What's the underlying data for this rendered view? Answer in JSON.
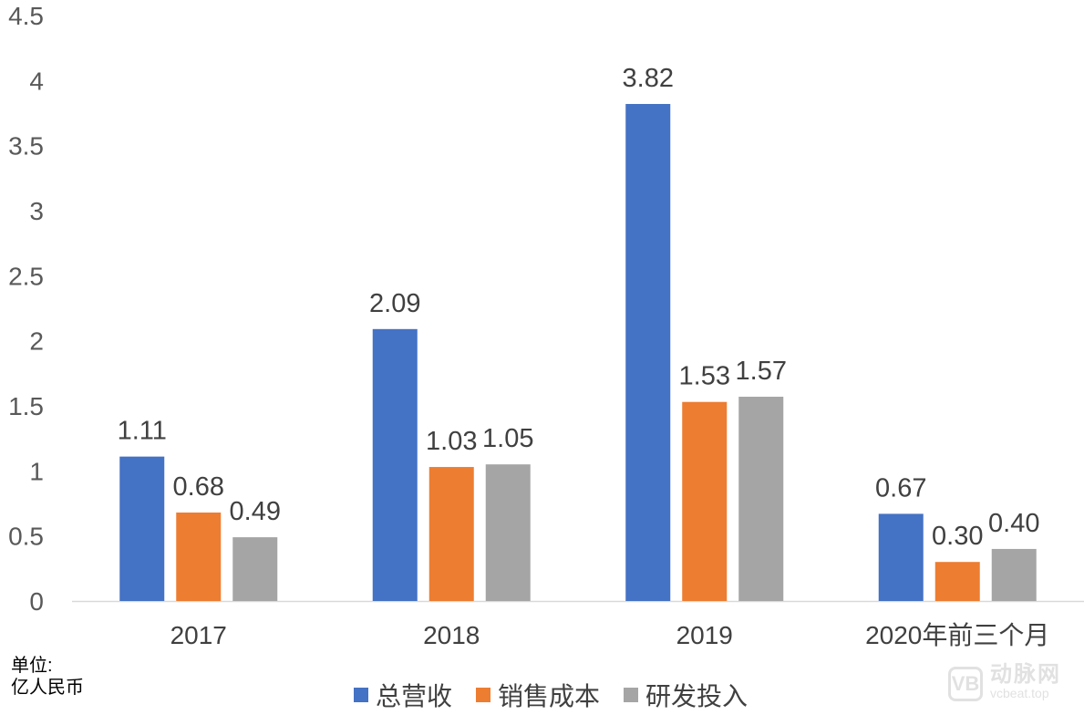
{
  "chart_data": {
    "type": "bar",
    "categories": [
      "2017",
      "2018",
      "2019",
      "2020年前三个月"
    ],
    "series": [
      {
        "name": "总营收",
        "color": "#4472c4",
        "values": [
          1.11,
          2.09,
          3.82,
          0.67
        ],
        "labels": [
          "1.11",
          "2.09",
          "3.82",
          "0.67"
        ]
      },
      {
        "name": "销售成本",
        "color": "#ed7d31",
        "values": [
          0.68,
          1.03,
          1.53,
          0.3
        ],
        "labels": [
          "0.68",
          "1.03",
          "1.53",
          "0.30"
        ]
      },
      {
        "name": "研发投入",
        "color": "#a5a5a5",
        "values": [
          0.49,
          1.05,
          1.57,
          0.4
        ],
        "labels": [
          "0.49",
          "1.05",
          "1.57",
          "0.40"
        ]
      }
    ],
    "ylim": [
      0,
      4.5
    ],
    "yticks": [
      "0",
      "0.5",
      "1",
      "1.5",
      "2",
      "2.5",
      "3",
      "3.5",
      "4",
      "4.5"
    ],
    "grid": false,
    "legend_position": "bottom"
  },
  "unit_label": "单位:",
  "unit_value": "亿人民币",
  "watermark": {
    "name": "动脉网",
    "url": "vcbeat.top"
  }
}
